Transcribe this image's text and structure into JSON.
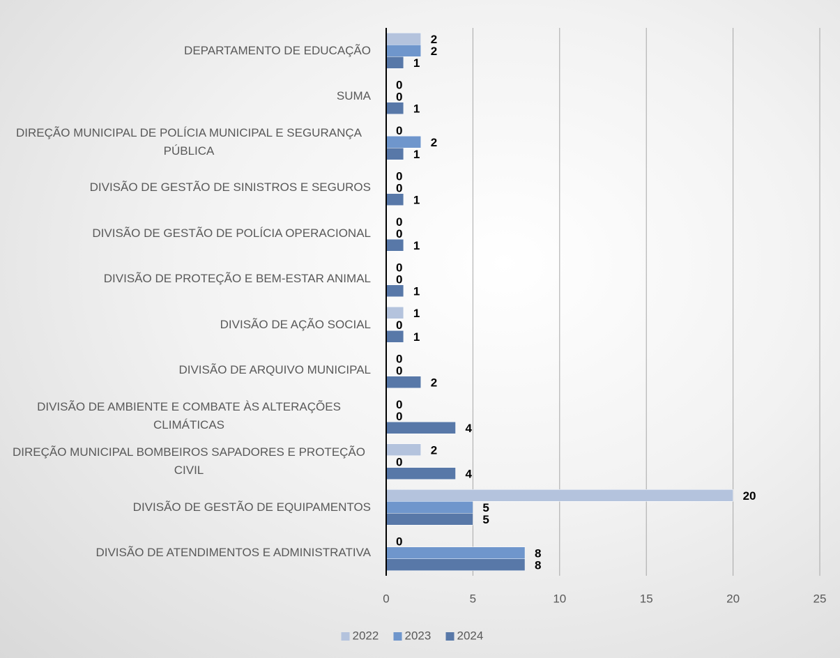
{
  "chart_data": {
    "type": "bar",
    "orientation": "horizontal",
    "categories": [
      "DEPARTAMENTO DE EDUCAÇÃO",
      "SUMA",
      "DIREÇÃO MUNICIPAL DE POLÍCIA MUNICIPAL E SEGURANÇA PÚBLICA",
      "DIVISÃO DE GESTÃO DE SINISTROS E SEGUROS",
      "DIVISÃO DE GESTÃO DE POLÍCIA OPERACIONAL",
      "DIVISÃO DE PROTEÇÃO E BEM-ESTAR ANIMAL",
      "DIVISÃO DE AÇÃO SOCIAL",
      "DIVISÃO DE ARQUIVO MUNICIPAL",
      "DIVISÃO DE AMBIENTE E COMBATE ÀS ALTERAÇÕES CLIMÁTICAS",
      "DIREÇÃO MUNICIPAL BOMBEIROS SAPADORES E PROTEÇÃO CIVIL",
      "DIVISÃO DE GESTÃO DE EQUIPAMENTOS",
      "DIVISÃO DE ATENDIMENTOS E ADMINISTRATIVA"
    ],
    "series": [
      {
        "name": "2022",
        "color": "#b4c3dd",
        "values": [
          2,
          0,
          0,
          0,
          0,
          0,
          1,
          0,
          0,
          2,
          20,
          0
        ]
      },
      {
        "name": "2023",
        "color": "#6f96cc",
        "values": [
          2,
          0,
          2,
          0,
          0,
          0,
          0,
          0,
          0,
          0,
          5,
          8
        ]
      },
      {
        "name": "2024",
        "color": "#5878a8",
        "values": [
          1,
          1,
          1,
          1,
          1,
          1,
          1,
          2,
          4,
          4,
          5,
          8
        ]
      }
    ],
    "xlim": [
      0,
      25
    ],
    "xticks": [
      0,
      5,
      10,
      15,
      20,
      25
    ],
    "grid": true,
    "legend": "bottom"
  }
}
